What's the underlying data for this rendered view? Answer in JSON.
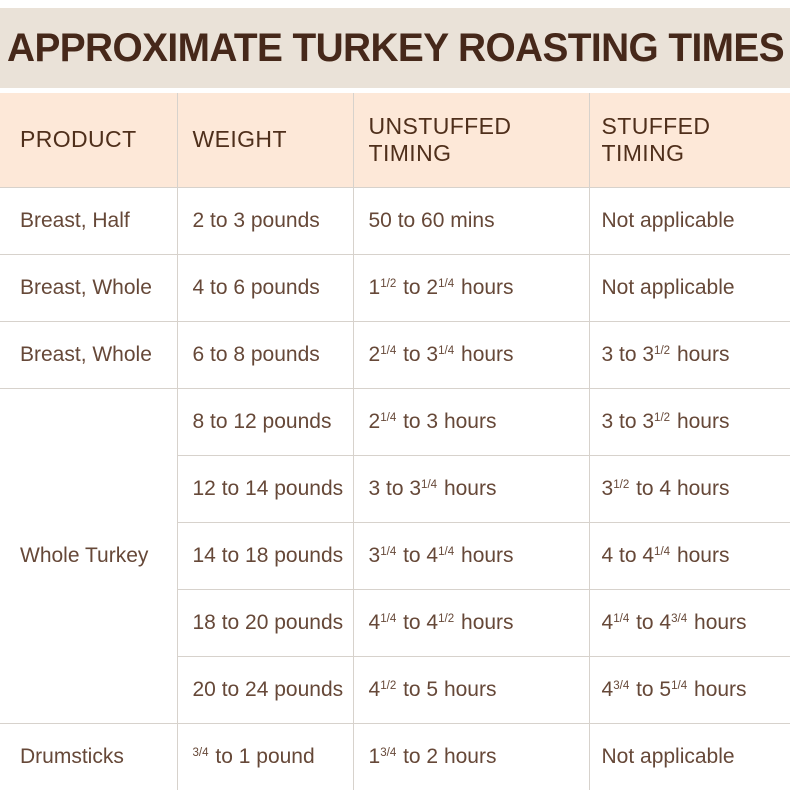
{
  "title": "APPROXIMATE TURKEY ROASTING TIMES",
  "colors": {
    "banner_bg": "#EAE2D8",
    "banner_text": "#46281A",
    "header_bg": "#FDE8D8",
    "header_text": "#4F2F1B",
    "body_text": "#664838",
    "divider": "#D7D2CC",
    "page_bg": "#FFFFFF"
  },
  "table": {
    "headers": {
      "product": "PRODUCT",
      "weight": "WEIGHT",
      "unstuffed": "UNSTUFFED TIMING",
      "stuffed": "STUFFED TIMING"
    },
    "rows": [
      {
        "product": "Breast, Half",
        "weight": "2 to 3 pounds",
        "unstuffed": "50 to 60 mins",
        "stuffed": "Not applicable"
      },
      {
        "product": "Breast, Whole",
        "weight": "4 to 6 pounds",
        "unstuffed": "1{1/2} to 2{1/4} hours",
        "stuffed": "Not applicable"
      },
      {
        "product": "Breast, Whole",
        "weight": "6 to 8 pounds",
        "unstuffed": "2{1/4} to 3{1/4} hours",
        "stuffed": "3 to 3{1/2} hours"
      },
      {
        "product": "Whole Turkey",
        "product_rowspan": 5,
        "weight": "8 to 12 pounds",
        "unstuffed": "2{1/4} to 3 hours",
        "stuffed": "3 to 3{1/2} hours"
      },
      {
        "weight": "12 to 14 pounds",
        "unstuffed": "3 to 3{1/4} hours",
        "stuffed": "3{1/2} to 4 hours"
      },
      {
        "weight": "14 to 18 pounds",
        "unstuffed": "3{1/4} to 4{1/4} hours",
        "stuffed": "4 to 4{1/4} hours"
      },
      {
        "weight": "18 to 20 pounds",
        "unstuffed": "4{1/4} to 4{1/2} hours",
        "stuffed": "4{1/4} to 4{3/4} hours"
      },
      {
        "weight": "20 to 24 pounds",
        "unstuffed": "4{1/2} to 5 hours",
        "stuffed": "4{3/4} to 5{1/4} hours"
      },
      {
        "product": "Drumsticks",
        "weight": "{3/4} to 1 pound",
        "unstuffed": "1{3/4} to 2 hours",
        "stuffed": "Not applicable"
      }
    ]
  }
}
